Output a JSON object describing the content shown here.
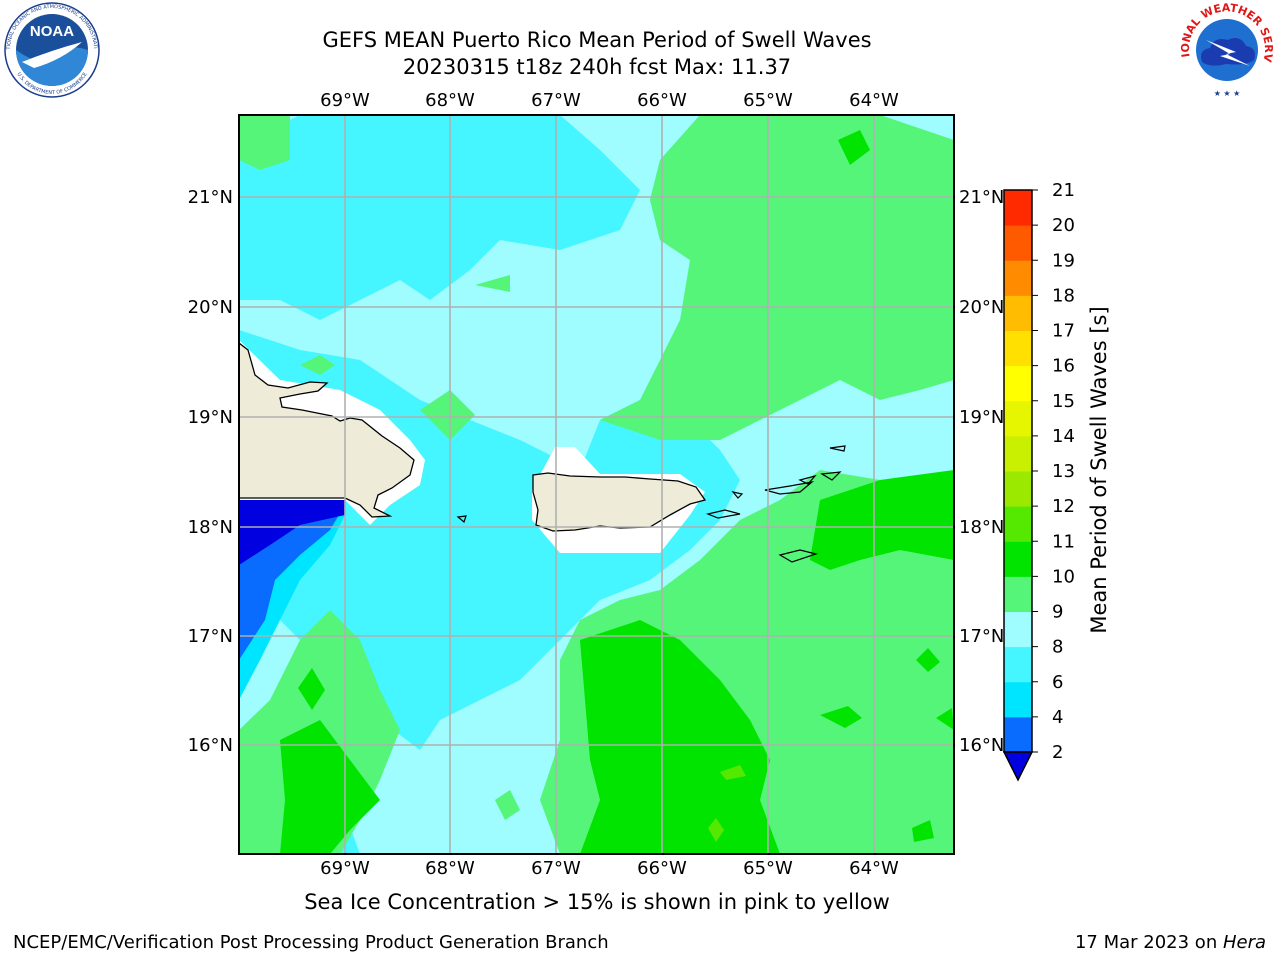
{
  "header": {
    "title_line1": "GEFS MEAN Puerto Rico Mean Period of Swell Waves",
    "title_line2": "20230315 t18z 240h fcst   Max: 11.37"
  },
  "logos": {
    "left": {
      "text": "NOAA",
      "ring_top": "NATIONAL OCEANIC AND ATMOSPHERIC ADMINISTRATION",
      "ring_bottom": "U.S. DEPARTMENT OF COMMERCE"
    },
    "right": {
      "ring_text": "NATIONAL WEATHER SERVICE"
    }
  },
  "map": {
    "lon_labels": [
      "69°W",
      "68°W",
      "67°W",
      "66°W",
      "65°W",
      "64°W"
    ],
    "lat_labels": [
      "21°N",
      "20°N",
      "19°N",
      "18°N",
      "17°N",
      "16°N"
    ],
    "colors": {
      "land": "#eeecd9",
      "coastline": "#000000",
      "grid": "#b0b0b0"
    }
  },
  "colorbar": {
    "label": "Mean Period of Swell Waves [s]",
    "levels": [
      2,
      4,
      6,
      8,
      9,
      10,
      11,
      12,
      13,
      14,
      15,
      16,
      17,
      18,
      19,
      20,
      21
    ],
    "colors": [
      "#0a6bff",
      "#00e5ff",
      "#45f5ff",
      "#9ffcff",
      "#55f57a",
      "#00e400",
      "#55e800",
      "#9be800",
      "#c8f000",
      "#e6f500",
      "#ffff00",
      "#ffe000",
      "#ffbc00",
      "#ff8c00",
      "#ff5a00",
      "#ff2a00",
      "#ff0000"
    ],
    "under_color": "#0000e0"
  },
  "footer": {
    "sea_ice_note": "Sea Ice Concentration > 15% is shown in pink to yellow",
    "credit": "NCEP/EMC/Verification Post Processing Product Generation Branch",
    "date": "17 Mar 2023 on ",
    "machine": "Hera"
  }
}
